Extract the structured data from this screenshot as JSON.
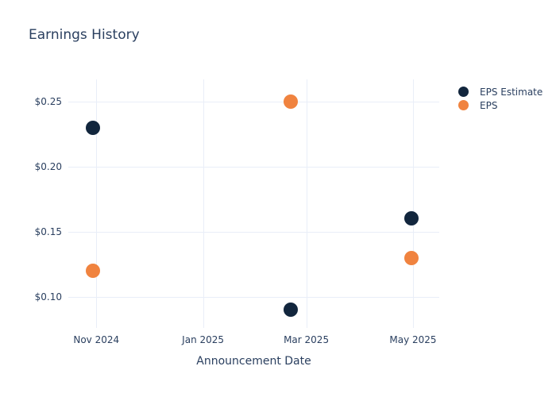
{
  "page": {
    "background": "#ffffff"
  },
  "chart": {
    "title": "Earnings History",
    "font_color": "#2a3f5f",
    "grid_color": "#e9eef8"
  },
  "chart_data": {
    "type": "scatter",
    "title": "Earnings History",
    "xlabel": "Announcement Date",
    "ylabel": "",
    "x": [
      "2024-10-30",
      "2025-02-20",
      "2025-04-30"
    ],
    "series": [
      {
        "name": "EPS Estimate",
        "color": "#12263d",
        "values": [
          0.23,
          0.09,
          0.16
        ]
      },
      {
        "name": "EPS",
        "color": "#f0833f",
        "values": [
          0.12,
          0.25,
          0.13
        ]
      }
    ],
    "x_ticks": [
      {
        "value": "2024-11-01",
        "label": "Nov 2024"
      },
      {
        "value": "2025-01-01",
        "label": "Jan 2025"
      },
      {
        "value": "2025-03-01",
        "label": "Mar 2025"
      },
      {
        "value": "2025-05-01",
        "label": "May 2025"
      }
    ],
    "y_ticks": [
      {
        "value": 0.1,
        "label": "$0.10"
      },
      {
        "value": 0.15,
        "label": "$0.15"
      },
      {
        "value": 0.2,
        "label": "$0.20"
      },
      {
        "value": 0.25,
        "label": "$0.25"
      }
    ],
    "x_range": [
      "2024-10-16",
      "2025-05-16"
    ],
    "y_range": [
      0.076,
      0.267
    ],
    "grid": true,
    "legend_position": "right",
    "marker_size_px": 18,
    "legend_marker_size_px": 13
  }
}
